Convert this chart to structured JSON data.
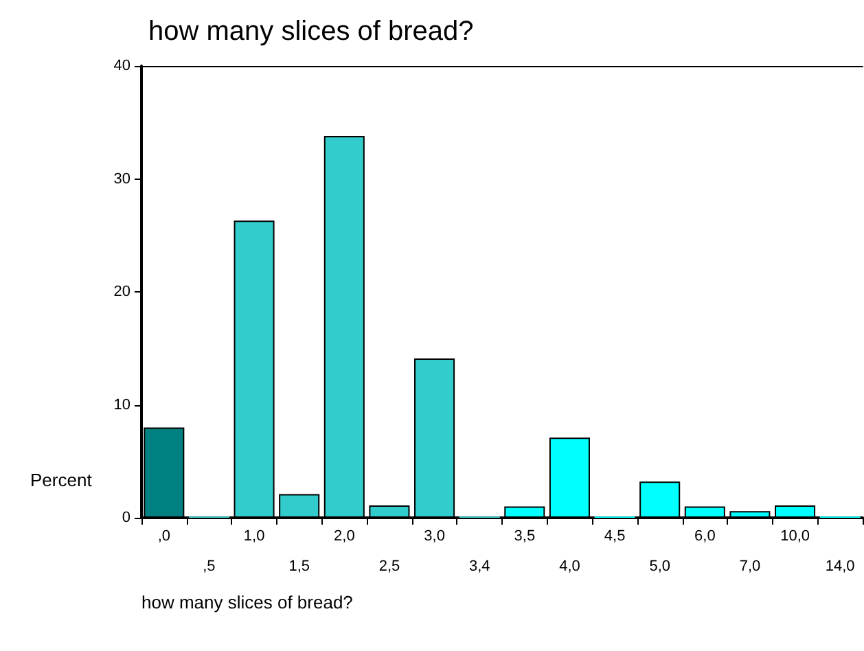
{
  "chart_data": {
    "type": "bar",
    "title": "how many slices of bread?",
    "xlabel": "how many slices of bread?",
    "ylabel": "Percent",
    "categories": [
      ",0",
      ",5",
      "1,0",
      "1,5",
      "2,0",
      "2,5",
      "3,0",
      "3,4",
      "3,5",
      "4,0",
      "4,5",
      "5,0",
      "6,0",
      "7,0",
      "10,0",
      "14,0"
    ],
    "values": [
      8.0,
      0.1,
      26.3,
      2.1,
      33.8,
      1.1,
      14.1,
      0.1,
      1.0,
      7.1,
      0.1,
      3.2,
      1.0,
      0.6,
      1.1,
      0.1
    ],
    "colors": [
      "#008080",
      "#33cccc",
      "#33cccc",
      "#33cccc",
      "#33cccc",
      "#33cccc",
      "#33cccc",
      "#33cccc",
      "#00ffff",
      "#00ffff",
      "#00ffff",
      "#00ffff",
      "#00ffff",
      "#00ffff",
      "#00ffff",
      "#00ffff"
    ],
    "ylim": [
      0,
      40
    ],
    "yticks": [
      0,
      10,
      20,
      30,
      40
    ],
    "grid": false
  }
}
